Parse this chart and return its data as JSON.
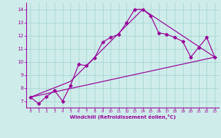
{
  "background_color": "#ceecea",
  "grid_color": "#aad8d5",
  "line_color": "#990099",
  "xlabel": "Windchill (Refroidissement éolien,°C)",
  "xlabel_color": "#990099",
  "tick_color": "#990099",
  "xlim": [
    -0.5,
    23.5
  ],
  "ylim": [
    6.5,
    14.5
  ],
  "yticks": [
    7,
    8,
    9,
    10,
    11,
    12,
    13,
    14
  ],
  "xticks": [
    0,
    1,
    2,
    3,
    4,
    5,
    6,
    7,
    8,
    9,
    10,
    11,
    12,
    13,
    14,
    15,
    16,
    17,
    18,
    19,
    20,
    21,
    22,
    23
  ],
  "line1_x": [
    0,
    1,
    2,
    3,
    4,
    5,
    6,
    7,
    8,
    9,
    10,
    11,
    12,
    13,
    14,
    15,
    16,
    17,
    18,
    19,
    20,
    21,
    22,
    23
  ],
  "line1_y": [
    7.3,
    6.8,
    7.35,
    7.8,
    7.0,
    8.2,
    9.8,
    9.7,
    10.3,
    11.5,
    11.85,
    12.1,
    13.0,
    14.0,
    14.0,
    13.5,
    12.2,
    12.1,
    11.85,
    11.55,
    10.35,
    11.1,
    11.85,
    10.35
  ],
  "line2_x": [
    0,
    23
  ],
  "line2_y": [
    7.3,
    10.35
  ],
  "line3_x": [
    0,
    5,
    14,
    23
  ],
  "line3_y": [
    7.3,
    8.5,
    14.0,
    10.35
  ]
}
